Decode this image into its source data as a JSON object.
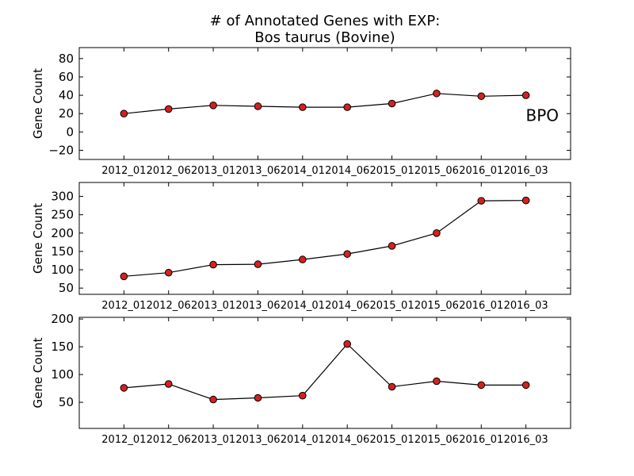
{
  "figure": {
    "title_line1": "# of Annotated Genes with EXP:",
    "title_line2": "Bos taurus (Bovine)"
  },
  "colors": {
    "line": "#000000",
    "marker_fill": "#d42020",
    "marker_edge": "#000000",
    "axes": "#000000",
    "background": "#ffffff"
  },
  "chart_data": [
    {
      "type": "line",
      "ylabel": "Gene Count",
      "annotation": "BPO",
      "categories": [
        "2012_01",
        "2012_06",
        "2013_01",
        "2013_06",
        "2014_01",
        "2014_06",
        "2015_01",
        "2015_06",
        "2016_01",
        "2016_03"
      ],
      "series": [
        {
          "values": [
            20,
            25,
            29,
            28,
            27,
            27,
            31,
            42,
            39,
            40
          ]
        }
      ],
      "ylim": [
        -30,
        92
      ],
      "yticks": [
        -20,
        0,
        20,
        40,
        60,
        80
      ],
      "xlim": [
        -1,
        10
      ]
    },
    {
      "type": "line",
      "ylabel": "Gene Count",
      "categories": [
        "2012_01",
        "2012_06",
        "2013_01",
        "2013_06",
        "2014_01",
        "2014_06",
        "2015_01",
        "2015_06",
        "2016_01",
        "2016_03"
      ],
      "series": [
        {
          "values": [
            82,
            92,
            114,
            115,
            128,
            143,
            165,
            200,
            288,
            289
          ]
        }
      ],
      "ylim": [
        33,
        338
      ],
      "yticks": [
        50,
        100,
        150,
        200,
        250,
        300
      ],
      "xlim": [
        -1,
        10
      ]
    },
    {
      "type": "line",
      "ylabel": "Gene Count",
      "categories": [
        "2012_01",
        "2012_06",
        "2013_01",
        "2013_06",
        "2014_01",
        "2014_06",
        "2015_01",
        "2015_06",
        "2016_01",
        "2016_03"
      ],
      "series": [
        {
          "values": [
            76,
            83,
            55,
            58,
            62,
            155,
            78,
            88,
            81,
            81
          ]
        }
      ],
      "ylim": [
        3,
        203
      ],
      "yticks": [
        50,
        100,
        150,
        200
      ],
      "xlim": [
        -1,
        10
      ]
    }
  ]
}
